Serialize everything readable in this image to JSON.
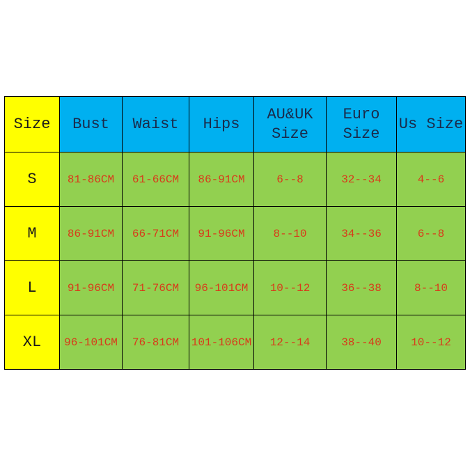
{
  "colors": {
    "size_column": "#ffff00",
    "header": "#00b0f0",
    "body": "#92d050",
    "value_text": "#d83a1a"
  },
  "headers": [
    "Size",
    "Bust",
    "Waist",
    "Hips",
    "AU&UK Size",
    "Euro Size",
    "Us Size"
  ],
  "rows": [
    [
      "S",
      "81-86CM",
      "61-66CM",
      "86-91CM",
      "6--8",
      "32--34",
      "4--6"
    ],
    [
      "M",
      "86-91CM",
      "66-71CM",
      "91-96CM",
      "8--10",
      "34--36",
      "6--8"
    ],
    [
      "L",
      "91-96CM",
      "71-76CM",
      "96-101CM",
      "10--12",
      "36--38",
      "8--10"
    ],
    [
      "XL",
      "96-101CM",
      "76-81CM",
      "101-106CM",
      "12--14",
      "38--40",
      "10--12"
    ]
  ]
}
